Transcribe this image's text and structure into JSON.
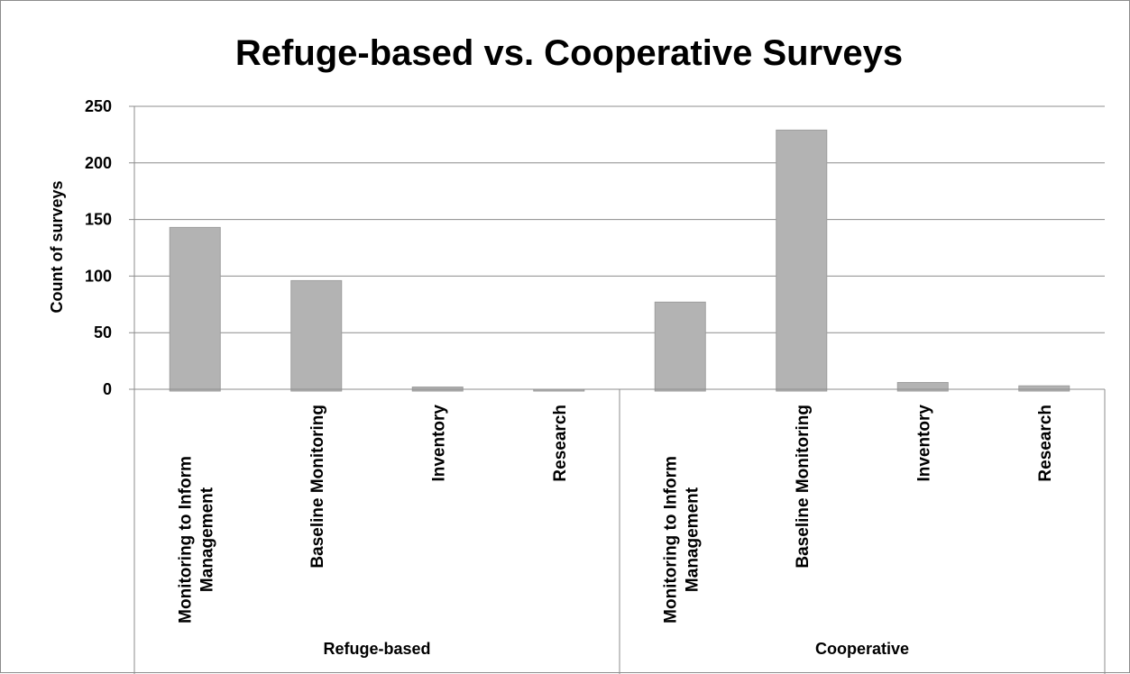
{
  "chart_data": {
    "type": "bar",
    "title": "Refuge-based vs. Cooperative Surveys",
    "ylabel": "Count of surveys",
    "xlabel": "",
    "ylim": [
      0,
      250
    ],
    "yticks": [
      0,
      50,
      100,
      150,
      200,
      250
    ],
    "grid": true,
    "legend": "none",
    "bar_color": "#b3b3b3",
    "groups": [
      {
        "name": "Refuge-based",
        "categories": [
          [
            "Monitoring to Inform",
            "Management"
          ],
          [
            "Baseline Monitoring"
          ],
          [
            "Inventory"
          ],
          [
            "Research"
          ]
        ],
        "values": [
          143,
          96,
          2,
          0
        ]
      },
      {
        "name": "Cooperative",
        "categories": [
          [
            "Monitoring to Inform",
            "Management"
          ],
          [
            "Baseline Monitoring"
          ],
          [
            "Inventory"
          ],
          [
            "Research"
          ]
        ],
        "values": [
          77,
          229,
          6,
          3
        ]
      }
    ]
  }
}
